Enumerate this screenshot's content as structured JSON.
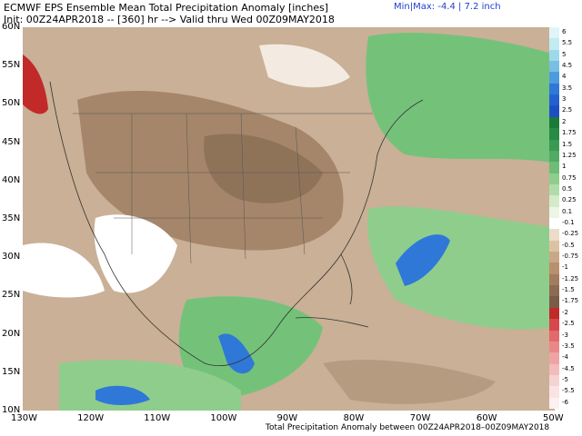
{
  "header": {
    "title": "ECMWF EPS Ensemble Mean Total Precipitation Anomaly [inches]",
    "subtitle": "Init: 00Z24APR2018 -- [360] hr --> Valid thru Wed 00Z09MAY2018",
    "minmax": "Min|Max: -4.4 | 7.2 inch"
  },
  "footer": "Total Precipitation Anomaly between 00Z24APR2018–00Z09MAY2018",
  "latitude_labels": [
    "60N",
    "55N",
    "50N",
    "45N",
    "40N",
    "35N",
    "30N",
    "25N",
    "20N",
    "15N",
    "10N"
  ],
  "longitude_labels": [
    "130W",
    "120W",
    "110W",
    "100W",
    "90W",
    "80W",
    "70W",
    "60W",
    "50W"
  ],
  "colorbar": {
    "labels": [
      "6",
      "5.5",
      "5",
      "4.5",
      "4",
      "3.5",
      "3",
      "2.5",
      "2",
      "1.75",
      "1.5",
      "1.25",
      "1",
      "0.75",
      "0.5",
      "0.25",
      "0.1",
      "-0.1",
      "-0.25",
      "-0.5",
      "-0.75",
      "-1",
      "-1.25",
      "-1.5",
      "-1.75",
      "-2",
      "-2.5",
      "-3",
      "-3.5",
      "-4",
      "-4.5",
      "-5",
      "-5.5",
      "-6"
    ],
    "colors": [
      "#e0f5f8",
      "#c2ebf2",
      "#9ed8ea",
      "#78bfe2",
      "#4f9be0",
      "#2f78d8",
      "#2461d0",
      "#1d4fc4",
      "#1a7a3a",
      "#278a45",
      "#3a9a52",
      "#52ab62",
      "#6fbc76",
      "#8fcd8d",
      "#b1dca9",
      "#d2ebc8",
      "#ecf6e6",
      "#ffffff",
      "#ecdcc9",
      "#dcc2a3",
      "#c9a787",
      "#b8906e",
      "#a47b5d",
      "#8c6b52",
      "#7a5c46",
      "#c22a2a",
      "#d8474a",
      "#e26a6a",
      "#ea8888",
      "#efa4a4",
      "#f3bcbc",
      "#f7d2d2",
      "#fae3e3",
      "#fdf0f0"
    ]
  },
  "colors": {
    "dry": "#b59c80",
    "very_dry": "#8f7359",
    "wet": "#74c27a",
    "very_wet": "#2f78d8",
    "extreme_dry": "#c22a2a",
    "minmax_text": "#1f3fd0"
  }
}
